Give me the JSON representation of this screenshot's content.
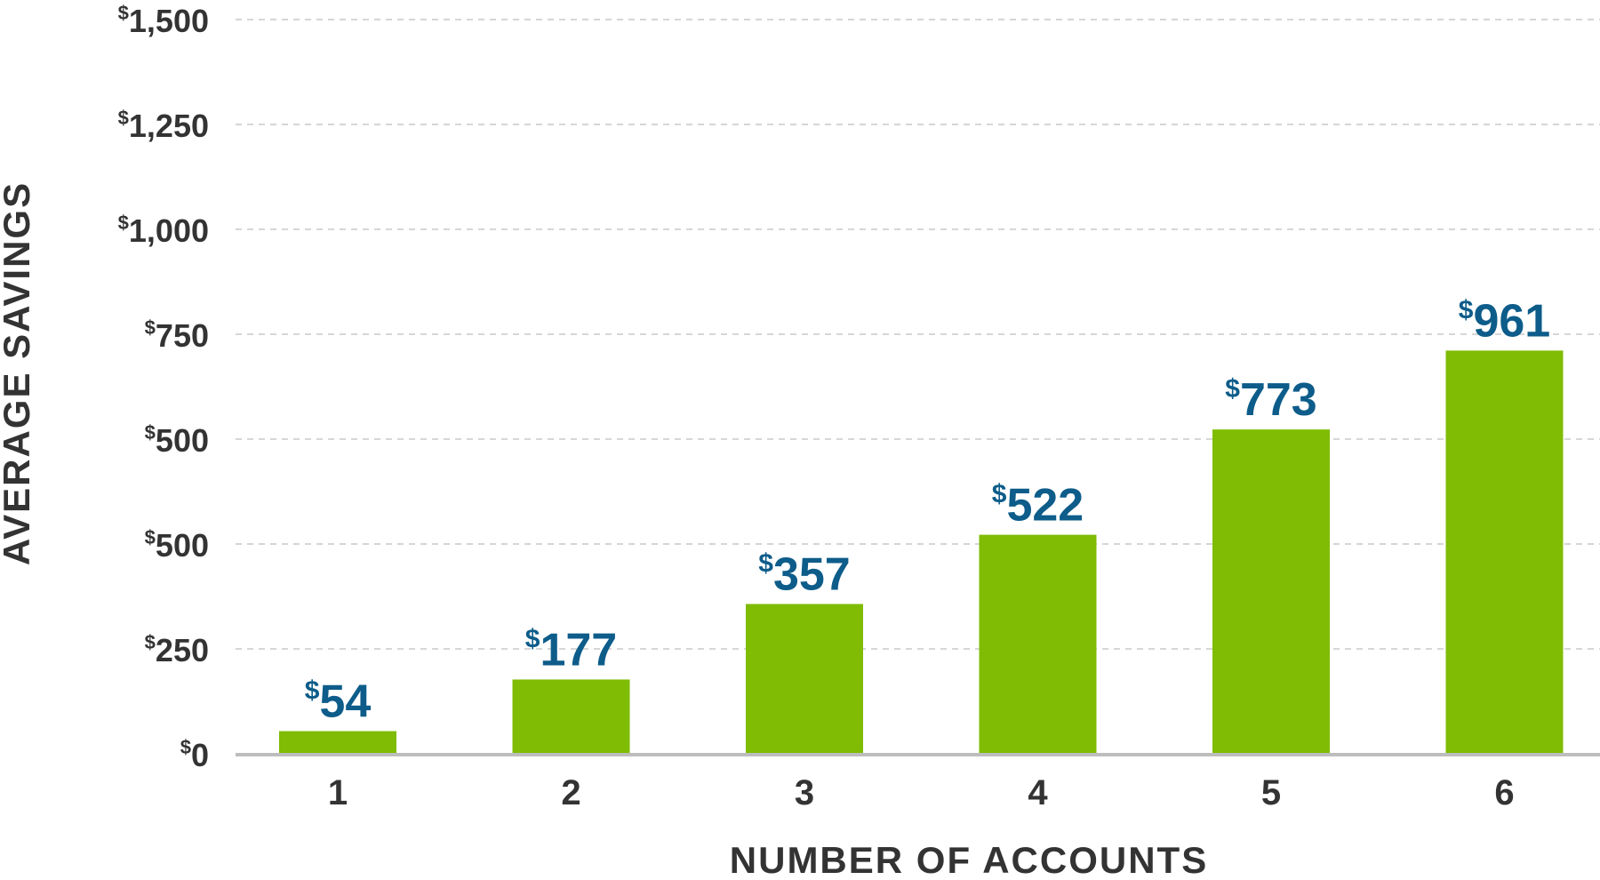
{
  "chart_data": {
    "type": "bar",
    "title": "",
    "xlabel": "NUMBER OF ACCOUNTS",
    "ylabel": "AVERAGE SAVINGS",
    "categories": [
      "1",
      "2",
      "3",
      "4",
      "5",
      "6"
    ],
    "values": [
      54,
      177,
      357,
      522,
      773,
      961
    ],
    "value_labels": [
      {
        "prefix": "$",
        "number": "54"
      },
      {
        "prefix": "$",
        "number": "177"
      },
      {
        "prefix": "$",
        "number": "357"
      },
      {
        "prefix": "$",
        "number": "522"
      },
      {
        "prefix": "$",
        "number": "773"
      },
      {
        "prefix": "$",
        "number": "961"
      }
    ],
    "yticks": [
      {
        "prefix": "$",
        "number": "0"
      },
      {
        "prefix": "$",
        "number": "250"
      },
      {
        "prefix": "$",
        "number": "500"
      },
      {
        "prefix": "$",
        "number": "500"
      },
      {
        "prefix": "$",
        "number": "750"
      },
      {
        "prefix": "$",
        "number": "1,000"
      },
      {
        "prefix": "$",
        "number": "1,250"
      },
      {
        "prefix": "$",
        "number": "1,500"
      }
    ],
    "grid": true,
    "legend": "none",
    "colors": {
      "bar": "#7fbc03",
      "value_label": "#0d5c8a",
      "axis_text": "#333333",
      "grid": "#c9c9c9",
      "baseline": "#bdbdbd"
    }
  }
}
